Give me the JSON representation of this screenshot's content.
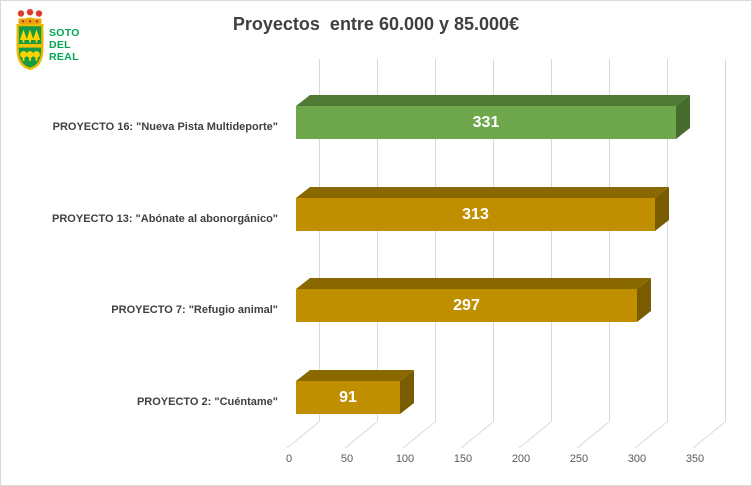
{
  "header": {
    "logo": {
      "line1": "SOTO",
      "line2": "DEL",
      "line3": "REAL"
    },
    "title": "Proyectos  entre 60.000 y 85.000€"
  },
  "chart_data": {
    "type": "bar",
    "orientation": "horizontal",
    "style": "3d",
    "title": "Proyectos entre 60.000 y 85.000€",
    "categories": [
      "PROYECTO 16: \"Nueva Pista Multideporte\"",
      "PROYECTO 13: \"Abónate al abonorgánico\"",
      "PROYECTO 7: \"Refugio animal\"",
      "PROYECTO 2: \"Cuéntame\""
    ],
    "values": [
      331,
      313,
      297,
      91
    ],
    "value_labels": "inside-center",
    "xlim": [
      0,
      350
    ],
    "x_ticks": [
      0,
      50,
      100,
      150,
      200,
      250,
      300,
      350
    ],
    "grid": true,
    "legend": false,
    "bar_colors": {
      "front": [
        "#6fa84c",
        "#bf8f00",
        "#bf8f00",
        "#bf8f00"
      ],
      "top": [
        "#4e7a33",
        "#8a6800",
        "#8a6800",
        "#8a6800"
      ],
      "side": [
        "#456c2d",
        "#7a5c00",
        "#7a5c00",
        "#7a5c00"
      ]
    }
  },
  "colors": {
    "gridline": "#d9d9d9",
    "title_text": "#404040",
    "category_text": "#404040",
    "tick_text": "#595959",
    "value_text": "#ffffff",
    "border": "#d9d9d9",
    "logo_text_green": "#00a651",
    "shield_green": "#169a43",
    "shield_gold": "#f2b800",
    "tree_yellow": "#ffd500",
    "crown_red": "#e0392e"
  }
}
